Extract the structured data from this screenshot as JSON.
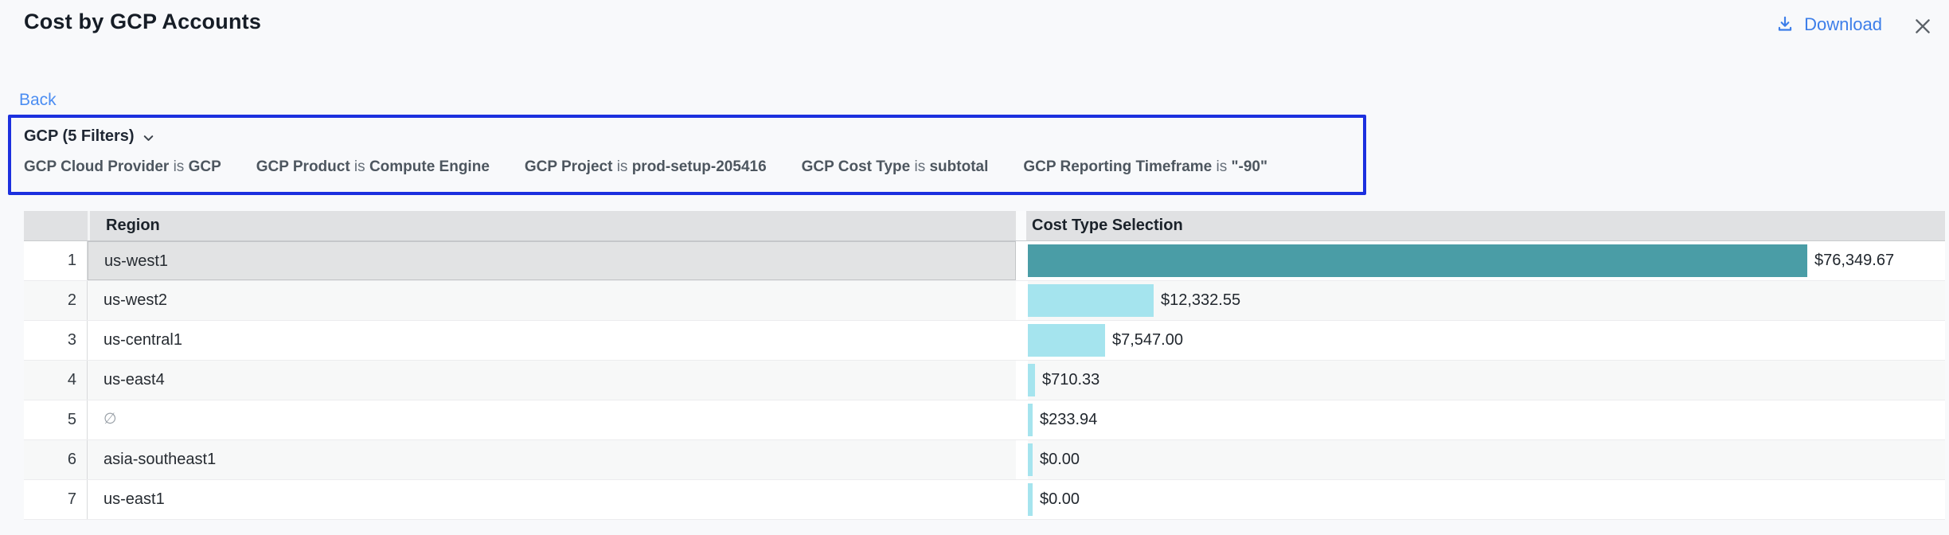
{
  "header": {
    "title": "Cost by GCP Accounts",
    "download_label": "Download"
  },
  "nav": {
    "back_label": "Back"
  },
  "filters": {
    "summary": "GCP (5 Filters)",
    "items": [
      {
        "name": "GCP Cloud Provider",
        "op": "is",
        "value": "GCP"
      },
      {
        "name": "GCP Product",
        "op": "is",
        "value": "Compute Engine"
      },
      {
        "name": "GCP Project",
        "op": "is",
        "value": "prod-setup-205416"
      },
      {
        "name": "GCP Cost Type",
        "op": "is",
        "value": "subtotal"
      },
      {
        "name": "GCP Reporting Timeframe",
        "op": "is",
        "value": "\"-90\""
      }
    ]
  },
  "table": {
    "columns": {
      "region": "Region",
      "cost": "Cost Type Selection"
    },
    "rows": [
      {
        "index": 1,
        "region": "us-west1",
        "cost_label": "$76,349.67",
        "cost_value": 76349.67,
        "selected": true,
        "region_empty": false
      },
      {
        "index": 2,
        "region": "us-west2",
        "cost_label": "$12,332.55",
        "cost_value": 12332.55,
        "selected": false,
        "region_empty": false
      },
      {
        "index": 3,
        "region": "us-central1",
        "cost_label": "$7,547.00",
        "cost_value": 7547.0,
        "selected": false,
        "region_empty": false
      },
      {
        "index": 4,
        "region": "us-east4",
        "cost_label": "$710.33",
        "cost_value": 710.33,
        "selected": false,
        "region_empty": false
      },
      {
        "index": 5,
        "region": "∅",
        "cost_label": "$233.94",
        "cost_value": 233.94,
        "selected": false,
        "region_empty": true
      },
      {
        "index": 6,
        "region": "asia-southeast1",
        "cost_label": "$0.00",
        "cost_value": 0.0,
        "selected": false,
        "region_empty": false
      },
      {
        "index": 7,
        "region": "us-east1",
        "cost_label": "$0.00",
        "cost_value": 0.0,
        "selected": false,
        "region_empty": false
      }
    ]
  },
  "chart_data": {
    "type": "bar",
    "orientation": "horizontal",
    "title": "Cost by GCP Accounts",
    "series_label": "Cost Type Selection",
    "categories": [
      "us-west1",
      "us-west2",
      "us-central1",
      "us-east4",
      "∅",
      "asia-southeast1",
      "us-east1"
    ],
    "values": [
      76349.67,
      12332.55,
      7547.0,
      710.33,
      233.94,
      0.0,
      0.0
    ],
    "data_labels": [
      "$76,349.67",
      "$12,332.55",
      "$7,547.00",
      "$710.33",
      "$233.94",
      "$0.00",
      "$0.00"
    ],
    "xlim": [
      0,
      76349.67
    ],
    "highlighted_index": 0,
    "legend_position": "none",
    "grid": false
  },
  "colors": {
    "bar_selected": "#4a9da6",
    "bar_default": "#a5e4ee",
    "filter_border": "#1c30df",
    "link_blue": "#4b8df2",
    "download_blue": "#3d7ee9",
    "header_bg": "#e0e1e3",
    "selected_cell_bg": "#e2e3e4"
  }
}
